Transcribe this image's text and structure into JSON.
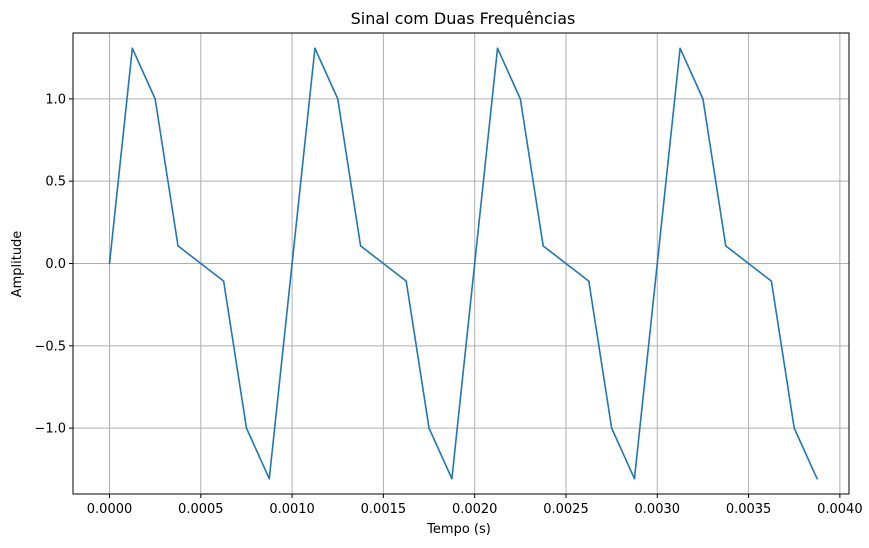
{
  "chart_data": {
    "type": "line",
    "title": "Sinal com Duas Frequências",
    "xlabel": "Tempo (s)",
    "ylabel": "Amplitude",
    "xlim": [
      -0.0002,
      0.00405
    ],
    "ylim": [
      -1.4,
      1.4
    ],
    "grid": true,
    "x_ticks": [
      0,
      0.0005,
      0.001,
      0.0015,
      0.002,
      0.0025,
      0.003,
      0.0035,
      0.004
    ],
    "x_tick_labels": [
      "0.0000",
      "0.0005",
      "0.0010",
      "0.0015",
      "0.0020",
      "0.0025",
      "0.0030",
      "0.0035",
      "0.0040"
    ],
    "y_ticks": [
      -1.0,
      -0.5,
      0.0,
      0.5,
      1.0
    ],
    "y_tick_labels": [
      "−1.0",
      "−0.5",
      "0.0",
      "0.5",
      "1.0"
    ],
    "series": [
      {
        "color": "#1f77b4",
        "x": [
          0,
          0.000125,
          0.00025,
          0.000375,
          0.0005,
          0.000625,
          0.00075,
          0.000875,
          0.001,
          0.001125,
          0.00125,
          0.001375,
          0.0015,
          0.001625,
          0.00175,
          0.001875,
          0.002,
          0.002125,
          0.00225,
          0.002375,
          0.0025,
          0.002625,
          0.00275,
          0.002875,
          0.003,
          0.003125,
          0.00325,
          0.003375,
          0.0035,
          0.003625,
          0.00375,
          0.003875
        ],
        "y": [
          0,
          1.307,
          1.0,
          0.107,
          0,
          -0.107,
          -1.0,
          -1.307,
          0,
          1.307,
          1.0,
          0.107,
          0,
          -0.107,
          -1.0,
          -1.307,
          0,
          1.307,
          1.0,
          0.107,
          0,
          -0.107,
          -1.0,
          -1.307,
          0,
          1.307,
          1.0,
          0.107,
          0,
          -0.107,
          -1.0,
          -1.307
        ]
      }
    ]
  }
}
